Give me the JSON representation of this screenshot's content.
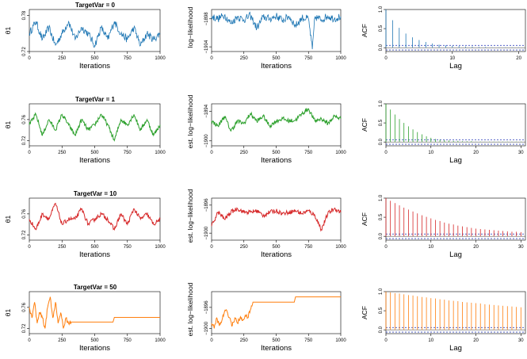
{
  "figure": {
    "rows": [
      {
        "title_prefix": "TargetVar = ",
        "title_value": "0",
        "color": "#1f77b4",
        "trace_theta": {
          "xlabel": "Iterations",
          "ylabel": "θ1",
          "xticks": [
            "0",
            "250",
            "500",
            "750",
            "1000"
          ],
          "yticks": [
            "0.72",
            "0.78"
          ]
        },
        "trace_loglik": {
          "xlabel": "Iterations",
          "ylabel": "log−likelihood",
          "xticks": [
            "0",
            "250",
            "500",
            "750",
            "1000"
          ],
          "yticks": [
            "−1904",
            "−1898"
          ]
        },
        "acf": {
          "xlabel": "Lag",
          "ylabel": "ACF",
          "xticks": [
            "0",
            "10",
            "20"
          ],
          "yticks": [
            "0.0",
            "0.5",
            "1.0"
          ]
        }
      },
      {
        "title_prefix": "TargetVar = ",
        "title_value": "1",
        "color": "#2ca02c",
        "trace_theta": {
          "xlabel": "Iterations",
          "ylabel": "θ1",
          "xticks": [
            "0",
            "250",
            "500",
            "750",
            "1000"
          ],
          "yticks": [
            "0.72",
            "0.76"
          ]
        },
        "trace_loglik": {
          "xlabel": "Iterations",
          "ylabel": "est. log−likelihood",
          "xticks": [
            "0",
            "250",
            "500",
            "750",
            "1000"
          ],
          "yticks": [
            "−1900",
            "−1894"
          ]
        },
        "acf": {
          "xlabel": "Lag",
          "ylabel": "ACF",
          "xticks": [
            "0",
            "10",
            "20",
            "30"
          ],
          "yticks": [
            "0.0",
            "0.5",
            "1.0"
          ]
        }
      },
      {
        "title_prefix": "TargetVar = ",
        "title_value": "10",
        "color": "#d62728",
        "trace_theta": {
          "xlabel": "Iterations",
          "ylabel": "θ1",
          "xticks": [
            "0",
            "250",
            "500",
            "750",
            "1000"
          ],
          "yticks": [
            "0.72",
            "0.76"
          ]
        },
        "trace_loglik": {
          "xlabel": "Iterations",
          "ylabel": "est. log−likelihood",
          "xticks": [
            "0",
            "250",
            "500",
            "750",
            "1000"
          ],
          "yticks": [
            "−1900",
            "−1896"
          ]
        },
        "acf": {
          "xlabel": "Lag",
          "ylabel": "ACF",
          "xticks": [
            "0",
            "10",
            "20",
            "30"
          ],
          "yticks": [
            "0.0",
            "0.5",
            "1.0"
          ]
        }
      },
      {
        "title_prefix": "TargetVar = ",
        "title_value": "50",
        "color": "#ff7f0e",
        "trace_theta": {
          "xlabel": "Iterations",
          "ylabel": "θ1",
          "xticks": [
            "0",
            "250",
            "500",
            "750",
            "1000"
          ],
          "yticks": [
            "0.72",
            "0.76"
          ]
        },
        "trace_loglik": {
          "xlabel": "Iterations",
          "ylabel": "est. log−likelihood",
          "xticks": [
            "0",
            "250",
            "500",
            "750",
            "1000"
          ],
          "yticks": [
            "−1900",
            "−1896"
          ]
        },
        "acf": {
          "xlabel": "Lag",
          "ylabel": "ACF",
          "xticks": [
            "0",
            "10",
            "20",
            "30"
          ],
          "yticks": [
            "0.0",
            "0.5",
            "1.0"
          ]
        }
      }
    ]
  },
  "chart_data": [
    {
      "panel": "TargetVar = 0 / θ1 trace",
      "type": "line",
      "xlabel": "Iterations",
      "ylabel": "θ1",
      "xlim": [
        0,
        1000
      ],
      "ylim": [
        0.72,
        0.79
      ],
      "xticks": [
        0,
        250,
        500,
        750,
        1000
      ],
      "yticks": [
        0.72,
        0.78
      ],
      "color": "#1f77b4",
      "x": [
        0,
        50,
        100,
        150,
        200,
        250,
        300,
        350,
        400,
        450,
        500,
        550,
        600,
        650,
        700,
        750,
        800,
        850,
        900,
        950,
        1000
      ],
      "y": [
        0.75,
        0.77,
        0.74,
        0.76,
        0.73,
        0.75,
        0.77,
        0.74,
        0.76,
        0.75,
        0.73,
        0.76,
        0.74,
        0.77,
        0.75,
        0.74,
        0.76,
        0.73,
        0.75,
        0.74,
        0.75
      ]
    },
    {
      "panel": "TargetVar = 0 / log-likelihood trace",
      "type": "line",
      "xlabel": "Iterations",
      "ylabel": "log−likelihood",
      "xlim": [
        0,
        1000
      ],
      "ylim": [
        -1905,
        -1896
      ],
      "xticks": [
        0,
        250,
        500,
        750,
        1000
      ],
      "yticks": [
        -1904,
        -1898
      ],
      "color": "#1f77b4",
      "x": [
        0,
        50,
        100,
        150,
        200,
        250,
        300,
        350,
        400,
        450,
        500,
        550,
        600,
        650,
        700,
        750,
        780,
        800,
        850,
        900,
        950,
        1000
      ],
      "y": [
        -1897.5,
        -1898,
        -1897.2,
        -1899,
        -1897.5,
        -1898.2,
        -1897.3,
        -1900,
        -1897.6,
        -1898,
        -1897.4,
        -1898.3,
        -1897.5,
        -1899.5,
        -1897.8,
        -1898,
        -1904.5,
        -1897.6,
        -1898.2,
        -1897.4,
        -1898,
        -1897.5
      ]
    },
    {
      "panel": "TargetVar = 0 / ACF",
      "type": "bar",
      "xlabel": "Lag",
      "ylabel": "ACF",
      "xlim": [
        0,
        21
      ],
      "ylim": [
        -0.1,
        1.0
      ],
      "xticks": [
        0,
        10,
        20
      ],
      "yticks": [
        0.0,
        0.5,
        1.0
      ],
      "color": "#1f77b4",
      "x": [
        0,
        1,
        2,
        3,
        4,
        5,
        6,
        7,
        8,
        9,
        10,
        11,
        12,
        13,
        14,
        15,
        16,
        17,
        18,
        19,
        20
      ],
      "y": [
        1.0,
        0.72,
        0.52,
        0.37,
        0.27,
        0.2,
        0.15,
        0.11,
        0.08,
        0.06,
        0.05,
        0.04,
        0.03,
        0.03,
        0.02,
        0.02,
        0.01,
        0.01,
        0.01,
        0.01,
        0.01
      ]
    },
    {
      "panel": "TargetVar = 1 / θ1 trace",
      "type": "line",
      "xlabel": "Iterations",
      "ylabel": "θ1",
      "xlim": [
        0,
        1000
      ],
      "ylim": [
        0.71,
        0.79
      ],
      "xticks": [
        0,
        250,
        500,
        750,
        1000
      ],
      "yticks": [
        0.72,
        0.76
      ],
      "color": "#2ca02c",
      "x": [
        0,
        50,
        100,
        150,
        200,
        250,
        300,
        350,
        400,
        450,
        500,
        550,
        600,
        650,
        700,
        750,
        800,
        850,
        900,
        950,
        1000
      ],
      "y": [
        0.75,
        0.77,
        0.73,
        0.76,
        0.74,
        0.77,
        0.75,
        0.73,
        0.76,
        0.74,
        0.75,
        0.77,
        0.75,
        0.72,
        0.76,
        0.75,
        0.77,
        0.74,
        0.76,
        0.73,
        0.75
      ]
    },
    {
      "panel": "TargetVar = 1 / est. log-likelihood trace",
      "type": "line",
      "xlabel": "Iterations",
      "ylabel": "est. log−likelihood",
      "xlim": [
        0,
        1000
      ],
      "ylim": [
        -1901,
        -1892.5
      ],
      "xticks": [
        0,
        250,
        500,
        750,
        1000
      ],
      "yticks": [
        -1900,
        -1894
      ],
      "color": "#2ca02c",
      "x": [
        0,
        50,
        100,
        150,
        200,
        250,
        300,
        350,
        400,
        450,
        500,
        550,
        600,
        650,
        700,
        750,
        800,
        850,
        900,
        950,
        1000
      ],
      "y": [
        -1896,
        -1897,
        -1895,
        -1898,
        -1896,
        -1896.5,
        -1894.5,
        -1896,
        -1895,
        -1897,
        -1896,
        -1895.5,
        -1896,
        -1895.8,
        -1894.5,
        -1893.5,
        -1896,
        -1895.5,
        -1896.5,
        -1895,
        -1895.5
      ]
    },
    {
      "panel": "TargetVar = 1 / ACF",
      "type": "bar",
      "xlabel": "Lag",
      "ylabel": "ACF",
      "xlim": [
        0,
        31
      ],
      "ylim": [
        -0.1,
        1.0
      ],
      "xticks": [
        0,
        10,
        20,
        30
      ],
      "yticks": [
        0.0,
        0.5,
        1.0
      ],
      "color": "#2ca02c",
      "x": [
        0,
        1,
        2,
        3,
        4,
        5,
        6,
        7,
        8,
        9,
        10,
        11,
        12,
        13,
        14,
        15,
        16,
        17,
        18,
        19,
        20,
        21,
        22,
        23,
        24,
        25,
        26,
        27,
        28,
        29,
        30
      ],
      "y": [
        1.0,
        0.85,
        0.72,
        0.6,
        0.5,
        0.41,
        0.33,
        0.26,
        0.2,
        0.15,
        0.11,
        0.08,
        0.06,
        0.05,
        0.04,
        0.03,
        0.03,
        0.02,
        0.02,
        0.02,
        0.01,
        0.01,
        0.01,
        0.01,
        0.01,
        0.01,
        0.01,
        0.01,
        0.01,
        0.01,
        0.01
      ]
    },
    {
      "panel": "TargetVar = 10 / θ1 trace",
      "type": "line",
      "xlabel": "Iterations",
      "ylabel": "θ1",
      "xlim": [
        0,
        1000
      ],
      "ylim": [
        0.71,
        0.79
      ],
      "xticks": [
        0,
        250,
        500,
        750,
        1000
      ],
      "yticks": [
        0.72,
        0.76
      ],
      "color": "#d62728",
      "x": [
        0,
        50,
        100,
        150,
        200,
        250,
        300,
        350,
        400,
        450,
        500,
        550,
        600,
        650,
        700,
        750,
        800,
        850,
        900,
        950,
        1000
      ],
      "y": [
        0.75,
        0.73,
        0.76,
        0.75,
        0.78,
        0.74,
        0.75,
        0.75,
        0.77,
        0.74,
        0.75,
        0.76,
        0.75,
        0.73,
        0.76,
        0.74,
        0.77,
        0.75,
        0.76,
        0.74,
        0.75
      ]
    },
    {
      "panel": "TargetVar = 10 / est. log-likelihood trace",
      "type": "line",
      "xlabel": "Iterations",
      "ylabel": "est. log−likelihood",
      "xlim": [
        0,
        1000
      ],
      "ylim": [
        -1901,
        -1895
      ],
      "xticks": [
        0,
        250,
        500,
        750,
        1000
      ],
      "yticks": [
        -1900,
        -1896
      ],
      "color": "#d62728",
      "x": [
        0,
        50,
        100,
        150,
        200,
        250,
        300,
        350,
        400,
        450,
        500,
        550,
        600,
        650,
        700,
        750,
        800,
        850,
        900,
        950,
        1000
      ],
      "y": [
        -1899,
        -1897,
        -1898,
        -1897,
        -1896.5,
        -1897,
        -1897,
        -1896.8,
        -1897.5,
        -1897,
        -1896.8,
        -1897.2,
        -1897,
        -1896.8,
        -1897.2,
        -1896.8,
        -1897.5,
        -1899.5,
        -1897.2,
        -1896.5,
        -1897
      ]
    },
    {
      "panel": "TargetVar = 10 / ACF",
      "type": "bar",
      "xlabel": "Lag",
      "ylabel": "ACF",
      "xlim": [
        0,
        31
      ],
      "ylim": [
        -0.1,
        1.0
      ],
      "xticks": [
        0,
        10,
        20,
        30
      ],
      "yticks": [
        0.0,
        0.5,
        1.0
      ],
      "color": "#d62728",
      "x": [
        0,
        1,
        2,
        3,
        4,
        5,
        6,
        7,
        8,
        9,
        10,
        11,
        12,
        13,
        14,
        15,
        16,
        17,
        18,
        19,
        20,
        21,
        22,
        23,
        24,
        25,
        26,
        27,
        28,
        29,
        30
      ],
      "y": [
        1.0,
        0.93,
        0.87,
        0.81,
        0.75,
        0.7,
        0.65,
        0.6,
        0.55,
        0.51,
        0.47,
        0.43,
        0.4,
        0.36,
        0.33,
        0.31,
        0.28,
        0.26,
        0.24,
        0.22,
        0.2,
        0.19,
        0.18,
        0.17,
        0.16,
        0.15,
        0.14,
        0.13,
        0.12,
        0.12,
        0.11
      ]
    },
    {
      "panel": "TargetVar = 50 / θ1 trace",
      "type": "line",
      "xlabel": "Iterations",
      "ylabel": "θ1",
      "xlim": [
        0,
        1000
      ],
      "ylim": [
        0.71,
        0.79
      ],
      "xticks": [
        0,
        250,
        500,
        750,
        1000
      ],
      "yticks": [
        0.72,
        0.76
      ],
      "color": "#ff7f0e",
      "x": [
        0,
        20,
        40,
        60,
        80,
        100,
        120,
        140,
        160,
        180,
        200,
        220,
        240,
        260,
        280,
        300,
        320,
        640,
        650,
        1000
      ],
      "y": [
        0.76,
        0.74,
        0.77,
        0.73,
        0.75,
        0.74,
        0.72,
        0.76,
        0.78,
        0.74,
        0.77,
        0.73,
        0.75,
        0.72,
        0.74,
        0.73,
        0.732,
        0.732,
        0.741,
        0.741
      ]
    },
    {
      "panel": "TargetVar = 50 / est. log-likelihood trace",
      "type": "line",
      "xlabel": "Iterations",
      "ylabel": "est. log−likelihood",
      "xlim": [
        0,
        1000
      ],
      "ylim": [
        -1901,
        -1893
      ],
      "xticks": [
        0,
        250,
        500,
        750,
        1000
      ],
      "yticks": [
        -1900,
        -1896
      ],
      "color": "#ff7f0e",
      "x": [
        0,
        20,
        40,
        60,
        80,
        100,
        120,
        140,
        160,
        180,
        200,
        220,
        240,
        260,
        280,
        300,
        320,
        640,
        650,
        1000
      ],
      "y": [
        -1899,
        -1900,
        -1898,
        -1899.5,
        -1898.5,
        -1896.8,
        -1896.8,
        -1898,
        -1899.5,
        -1898,
        -1899,
        -1898,
        -1898.5,
        -1897.5,
        -1898,
        -1896.5,
        -1895,
        -1895,
        -1894,
        -1894
      ]
    },
    {
      "panel": "TargetVar = 50 / ACF",
      "type": "bar",
      "xlabel": "Lag",
      "ylabel": "ACF",
      "xlim": [
        0,
        31
      ],
      "ylim": [
        -0.1,
        1.0
      ],
      "xticks": [
        0,
        10,
        20,
        30
      ],
      "yticks": [
        0.0,
        0.5,
        1.0
      ],
      "color": "#ff7f0e",
      "x": [
        0,
        1,
        2,
        3,
        4,
        5,
        6,
        7,
        8,
        9,
        10,
        11,
        12,
        13,
        14,
        15,
        16,
        17,
        18,
        19,
        20,
        21,
        22,
        23,
        24,
        25,
        26,
        27,
        28,
        29,
        30
      ],
      "y": [
        1.0,
        0.98,
        0.96,
        0.95,
        0.93,
        0.91,
        0.9,
        0.88,
        0.86,
        0.85,
        0.83,
        0.82,
        0.8,
        0.79,
        0.77,
        0.76,
        0.75,
        0.73,
        0.72,
        0.71,
        0.7,
        0.69,
        0.67,
        0.66,
        0.65,
        0.64,
        0.63,
        0.62,
        0.61,
        0.6,
        0.59
      ]
    }
  ]
}
